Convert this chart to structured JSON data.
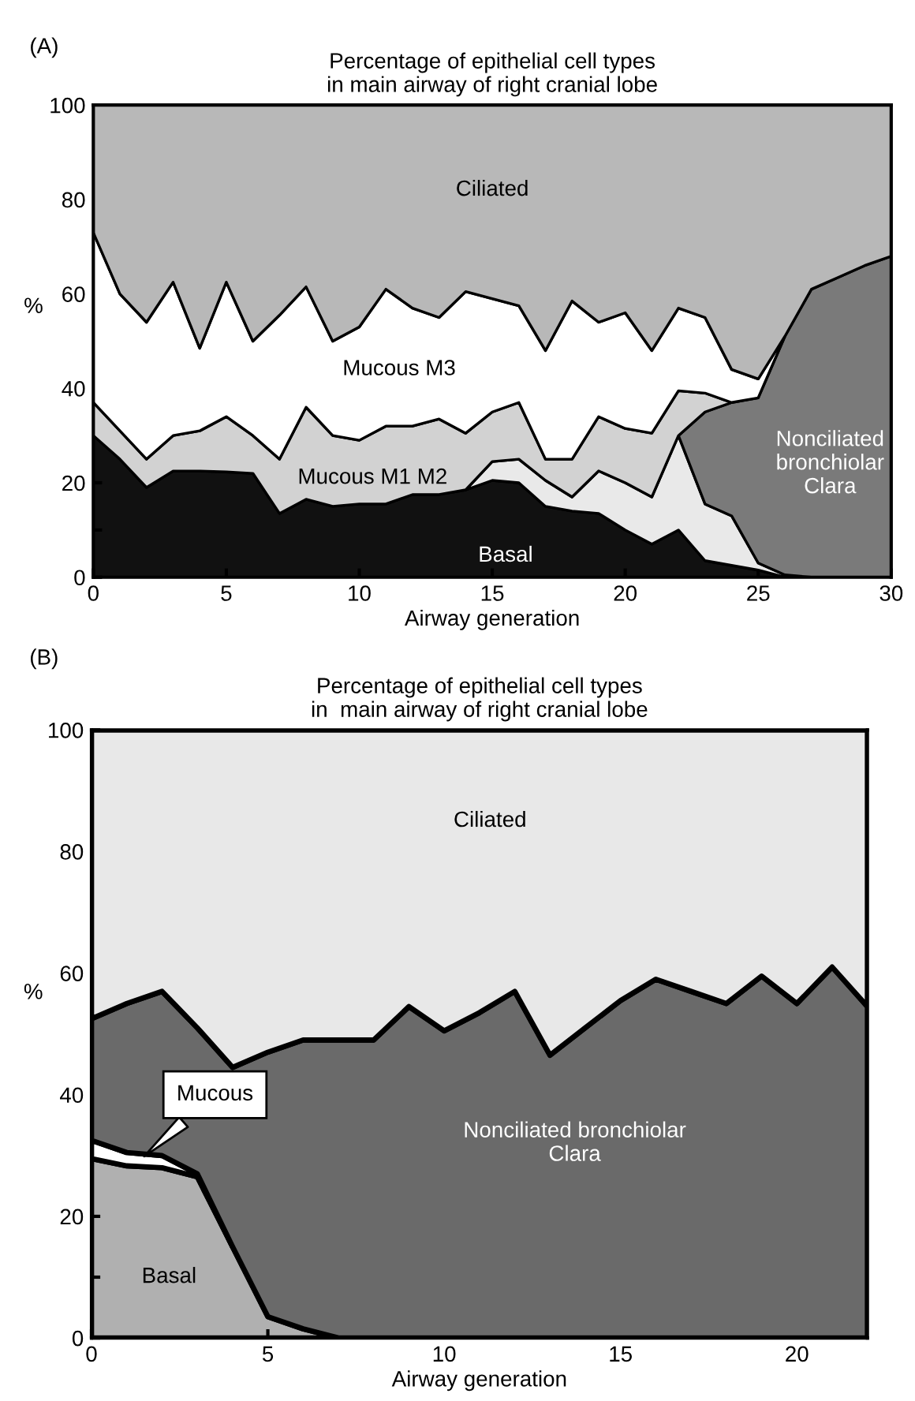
{
  "chart_data": [
    {
      "type": "area",
      "stacked": true,
      "title": "Percentage of epithelial cell types\nin main airway of right cranial lobe",
      "xlabel": "Airway generation",
      "ylabel": "%",
      "annotations": [
        "(A)"
      ],
      "x": [
        0,
        1,
        2,
        3,
        4,
        5,
        6,
        7,
        8,
        9,
        10,
        11,
        12,
        13,
        14,
        15,
        16,
        17,
        18,
        19,
        20,
        21,
        22,
        23,
        24,
        25,
        26,
        27,
        28,
        29,
        30
      ],
      "xlim": [
        0,
        30
      ],
      "xticks": [
        0,
        5,
        10,
        15,
        20,
        25,
        30
      ],
      "ylim": [
        0,
        100
      ],
      "yticks": [
        0,
        {
          "value": 10,
          "label": null
        },
        20,
        {
          "value": 30,
          "label": null
        },
        40,
        {
          "value": 50,
          "label": null
        },
        60,
        {
          "value": 70,
          "label": null
        },
        80,
        {
          "value": 90,
          "label": null
        },
        100
      ],
      "series": [
        {
          "name": "Basal",
          "color": "#111111",
          "values": [
            30,
            25,
            19,
            22.5,
            22.5,
            22.3,
            22,
            13.5,
            16.5,
            15,
            15.5,
            15.5,
            17.5,
            17.5,
            18.5,
            20.5,
            20,
            15,
            14,
            13.5,
            10,
            7,
            10,
            3.5,
            2.5,
            1.5,
            0,
            null,
            null,
            null,
            null
          ]
        },
        {
          "color": "#e9e9e9",
          "values": [
            null,
            null,
            null,
            null,
            null,
            null,
            null,
            null,
            null,
            null,
            null,
            null,
            null,
            null,
            0,
            4,
            5,
            5.5,
            3,
            9,
            10,
            10,
            20,
            12,
            10.5,
            1.5,
            0.5,
            0,
            null,
            null,
            null
          ]
        },
        {
          "name": "Nonciliated\nbronchiolar\nClara",
          "color": "#7a7a7a",
          "values": [
            null,
            null,
            null,
            null,
            null,
            null,
            null,
            null,
            null,
            null,
            null,
            null,
            null,
            null,
            null,
            null,
            null,
            null,
            null,
            null,
            null,
            null,
            0,
            19.5,
            24,
            35,
            50.5,
            61,
            63.5,
            66,
            68
          ]
        },
        {
          "name": "Mucous M1 M2",
          "color": "#d2d2d2",
          "values": [
            7,
            6,
            6,
            7.5,
            8.5,
            11.7,
            8,
            11.5,
            19.5,
            15,
            13.5,
            16.5,
            14.5,
            16,
            12,
            10.5,
            12,
            4.5,
            8,
            11.5,
            11.5,
            13.5,
            9.5,
            4,
            0,
            null,
            null,
            null,
            null,
            null,
            null
          ]
        },
        {
          "name": "Mucous M3",
          "color": "#ffffff",
          "values": [
            36,
            29,
            29,
            32.5,
            17.5,
            28.5,
            20,
            30.5,
            25.5,
            20,
            24,
            29,
            25,
            21.5,
            30,
            24,
            20.5,
            23,
            33.5,
            20,
            24.5,
            17.5,
            17.5,
            16,
            7,
            4,
            0,
            null,
            null,
            null,
            null
          ]
        },
        {
          "name": "Ciliated",
          "color": "#b8b8b8",
          "values": [
            27,
            40,
            46,
            37.5,
            51.5,
            37.5,
            50,
            44.5,
            38.5,
            50,
            47,
            39,
            43,
            45,
            39.5,
            41,
            42.5,
            52,
            41.5,
            46,
            44,
            52,
            43,
            45,
            56,
            58,
            49,
            39,
            36.5,
            34,
            32
          ]
        }
      ]
    },
    {
      "type": "area",
      "stacked": true,
      "title": "Percentage of epithelial cell types\nin  main airway of right cranial lobe",
      "xlabel": "Airway generation",
      "ylabel": "%",
      "annotations": [
        "(B)"
      ],
      "x": [
        0,
        1,
        2,
        3,
        4,
        5,
        6,
        7,
        8,
        9,
        10,
        11,
        12,
        13,
        14,
        15,
        16,
        17,
        18,
        19,
        20,
        21,
        22
      ],
      "xlim": [
        0,
        22
      ],
      "xticks": [
        0,
        5,
        10,
        15,
        20
      ],
      "ylim": [
        0,
        100
      ],
      "yticks": [
        0,
        {
          "value": 10,
          "label": null
        },
        20,
        {
          "value": 30,
          "label": null
        },
        40,
        {
          "value": 50,
          "label": null
        },
        60,
        {
          "value": 70,
          "label": null
        },
        80,
        {
          "value": 90,
          "label": null
        },
        100
      ],
      "series": [
        {
          "name": "Basal",
          "color": "#b0b0b0",
          "values": [
            29.5,
            28.3,
            28,
            26.5,
            15,
            3.5,
            1.5,
            0,
            null,
            null,
            null,
            null,
            null,
            null,
            null,
            null,
            null,
            null,
            null,
            null,
            null,
            null,
            null
          ]
        },
        {
          "name": "Mucous",
          "color": "#ffffff",
          "values": [
            3,
            2.2,
            2,
            0.5,
            0,
            null,
            null,
            null,
            null,
            null,
            null,
            null,
            null,
            null,
            null,
            null,
            null,
            null,
            null,
            null,
            null,
            null,
            null
          ]
        },
        {
          "name": "Nonciliated bronchiolar\nClara",
          "color": "#6a6a6a",
          "values": [
            20,
            24.5,
            27,
            24,
            29.5,
            43.5,
            47.5,
            49,
            49,
            54.5,
            50.5,
            53.5,
            57,
            46.5,
            51,
            55.5,
            59,
            57,
            55,
            59.5,
            55,
            61,
            54.5
          ]
        },
        {
          "name": "Ciliated",
          "color": "#e8e8e8",
          "values": [
            47.5,
            45,
            43,
            49,
            55.5,
            53,
            51,
            51,
            51,
            45.5,
            49.5,
            46.5,
            43,
            53.5,
            49,
            44.5,
            41,
            43,
            45,
            40.5,
            45,
            39,
            45.5
          ]
        }
      ]
    }
  ]
}
